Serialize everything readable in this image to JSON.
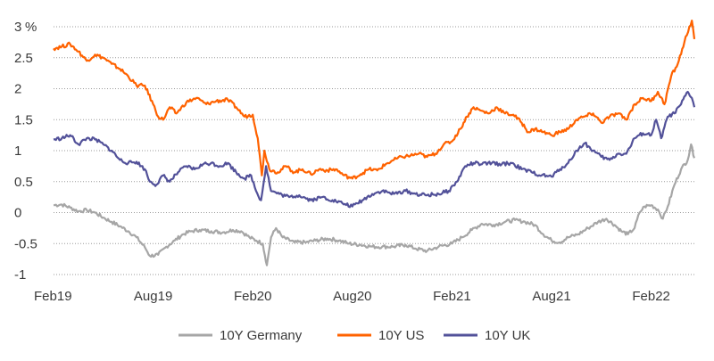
{
  "chart_data": {
    "type": "line",
    "title": "",
    "xlabel": "",
    "ylabel": "",
    "unit_label": "%",
    "ylim": [
      -1,
      3
    ],
    "yticks": [
      {
        "v": 3,
        "label": "3"
      },
      {
        "v": 2.5,
        "label": "2.5"
      },
      {
        "v": 2,
        "label": "2"
      },
      {
        "v": 1.5,
        "label": "1.5"
      },
      {
        "v": 1,
        "label": "1"
      },
      {
        "v": 0.5,
        "label": "0.5"
      },
      {
        "v": 0,
        "label": "0"
      },
      {
        "v": -0.5,
        "label": "-0.5"
      },
      {
        "v": -1,
        "label": "-1"
      }
    ],
    "xlim": [
      0,
      38.6
    ],
    "xticks": [
      {
        "t": 0,
        "label": "Feb19"
      },
      {
        "t": 6,
        "label": "Aug19"
      },
      {
        "t": 12,
        "label": "Feb20"
      },
      {
        "t": 18,
        "label": "Aug20"
      },
      {
        "t": 24,
        "label": "Feb21"
      },
      {
        "t": 30,
        "label": "Aug21"
      },
      {
        "t": 36,
        "label": "Feb22"
      }
    ],
    "grid": "horizontal dotted",
    "legend_position": "bottom",
    "series": [
      {
        "name": "10Y Germany",
        "color": "#a6a6a6",
        "points": [
          [
            0,
            0.12
          ],
          [
            0.5,
            0.13
          ],
          [
            1,
            0.08
          ],
          [
            1.5,
            0.02
          ],
          [
            2,
            0.04
          ],
          [
            2.5,
            0.0
          ],
          [
            3,
            -0.08
          ],
          [
            3.5,
            -0.15
          ],
          [
            4,
            -0.22
          ],
          [
            4.5,
            -0.3
          ],
          [
            5,
            -0.4
          ],
          [
            5.5,
            -0.56
          ],
          [
            5.8,
            -0.7
          ],
          [
            6.3,
            -0.68
          ],
          [
            6.8,
            -0.55
          ],
          [
            7.3,
            -0.45
          ],
          [
            7.8,
            -0.35
          ],
          [
            8.3,
            -0.3
          ],
          [
            8.8,
            -0.28
          ],
          [
            9.5,
            -0.3
          ],
          [
            10.2,
            -0.32
          ],
          [
            10.8,
            -0.28
          ],
          [
            11.3,
            -0.3
          ],
          [
            11.8,
            -0.4
          ],
          [
            12.2,
            -0.45
          ],
          [
            12.6,
            -0.5
          ],
          [
            12.85,
            -0.85
          ],
          [
            13.1,
            -0.4
          ],
          [
            13.4,
            -0.25
          ],
          [
            13.8,
            -0.4
          ],
          [
            14.5,
            -0.48
          ],
          [
            15.2,
            -0.48
          ],
          [
            15.8,
            -0.45
          ],
          [
            16.5,
            -0.42
          ],
          [
            17.2,
            -0.45
          ],
          [
            17.8,
            -0.5
          ],
          [
            18.5,
            -0.52
          ],
          [
            19.2,
            -0.55
          ],
          [
            19.8,
            -0.55
          ],
          [
            20.5,
            -0.55
          ],
          [
            21.2,
            -0.52
          ],
          [
            21.8,
            -0.58
          ],
          [
            22.5,
            -0.62
          ],
          [
            23.2,
            -0.55
          ],
          [
            24,
            -0.5
          ],
          [
            24.6,
            -0.4
          ],
          [
            25.2,
            -0.28
          ],
          [
            25.8,
            -0.18
          ],
          [
            26.5,
            -0.2
          ],
          [
            27.2,
            -0.15
          ],
          [
            27.8,
            -0.12
          ],
          [
            28.4,
            -0.15
          ],
          [
            29,
            -0.2
          ],
          [
            29.5,
            -0.35
          ],
          [
            30,
            -0.45
          ],
          [
            30.5,
            -0.48
          ],
          [
            31,
            -0.4
          ],
          [
            31.6,
            -0.35
          ],
          [
            32.2,
            -0.25
          ],
          [
            32.8,
            -0.15
          ],
          [
            33.3,
            -0.1
          ],
          [
            33.8,
            -0.2
          ],
          [
            34.2,
            -0.3
          ],
          [
            34.6,
            -0.35
          ],
          [
            35,
            -0.25
          ],
          [
            35.3,
            0.0
          ],
          [
            35.6,
            0.1
          ],
          [
            36,
            0.12
          ],
          [
            36.4,
            0.05
          ],
          [
            36.7,
            -0.1
          ],
          [
            37,
            0.1
          ],
          [
            37.4,
            0.45
          ],
          [
            37.8,
            0.7
          ],
          [
            38.2,
            0.85
          ],
          [
            38.4,
            1.1
          ],
          [
            38.6,
            0.88
          ]
        ]
      },
      {
        "name": "10Y US",
        "color": "#ff6200",
        "points": [
          [
            0,
            2.65
          ],
          [
            0.5,
            2.68
          ],
          [
            1,
            2.72
          ],
          [
            1.5,
            2.6
          ],
          [
            2,
            2.45
          ],
          [
            2.5,
            2.55
          ],
          [
            3,
            2.5
          ],
          [
            3.5,
            2.4
          ],
          [
            4,
            2.32
          ],
          [
            4.5,
            2.2
          ],
          [
            5,
            2.05
          ],
          [
            5.5,
            2.05
          ],
          [
            6,
            1.75
          ],
          [
            6.3,
            1.55
          ],
          [
            6.6,
            1.5
          ],
          [
            7,
            1.7
          ],
          [
            7.4,
            1.6
          ],
          [
            8,
            1.78
          ],
          [
            8.6,
            1.85
          ],
          [
            9.2,
            1.75
          ],
          [
            9.8,
            1.8
          ],
          [
            10.5,
            1.82
          ],
          [
            11,
            1.7
          ],
          [
            11.5,
            1.55
          ],
          [
            12,
            1.58
          ],
          [
            12.3,
            1.2
          ],
          [
            12.55,
            0.6
          ],
          [
            12.7,
            1.0
          ],
          [
            13,
            0.7
          ],
          [
            13.5,
            0.65
          ],
          [
            14,
            0.75
          ],
          [
            14.5,
            0.65
          ],
          [
            15,
            0.7
          ],
          [
            15.5,
            0.62
          ],
          [
            16,
            0.7
          ],
          [
            16.5,
            0.68
          ],
          [
            17,
            0.7
          ],
          [
            17.5,
            0.6
          ],
          [
            18,
            0.55
          ],
          [
            18.5,
            0.62
          ],
          [
            19,
            0.7
          ],
          [
            19.5,
            0.68
          ],
          [
            20,
            0.78
          ],
          [
            20.5,
            0.85
          ],
          [
            21,
            0.9
          ],
          [
            21.5,
            0.92
          ],
          [
            22,
            0.95
          ],
          [
            22.5,
            0.9
          ],
          [
            23,
            0.95
          ],
          [
            23.5,
            1.1
          ],
          [
            24,
            1.15
          ],
          [
            24.5,
            1.35
          ],
          [
            24.9,
            1.55
          ],
          [
            25.3,
            1.7
          ],
          [
            25.7,
            1.65
          ],
          [
            26.2,
            1.6
          ],
          [
            26.7,
            1.7
          ],
          [
            27.2,
            1.6
          ],
          [
            27.7,
            1.58
          ],
          [
            28.2,
            1.45
          ],
          [
            28.6,
            1.3
          ],
          [
            29,
            1.35
          ],
          [
            29.5,
            1.3
          ],
          [
            30,
            1.25
          ],
          [
            30.5,
            1.3
          ],
          [
            31,
            1.35
          ],
          [
            31.5,
            1.5
          ],
          [
            32,
            1.55
          ],
          [
            32.5,
            1.6
          ],
          [
            33,
            1.45
          ],
          [
            33.5,
            1.55
          ],
          [
            34,
            1.6
          ],
          [
            34.5,
            1.5
          ],
          [
            35,
            1.75
          ],
          [
            35.5,
            1.85
          ],
          [
            36,
            1.8
          ],
          [
            36.4,
            1.95
          ],
          [
            36.8,
            1.75
          ],
          [
            37.2,
            2.2
          ],
          [
            37.6,
            2.4
          ],
          [
            38,
            2.75
          ],
          [
            38.3,
            3.0
          ],
          [
            38.45,
            3.1
          ],
          [
            38.6,
            2.8
          ]
        ]
      },
      {
        "name": "10Y UK",
        "color": "#525199",
        "points": [
          [
            0,
            1.18
          ],
          [
            0.5,
            1.2
          ],
          [
            1,
            1.25
          ],
          [
            1.5,
            1.1
          ],
          [
            2,
            1.2
          ],
          [
            2.5,
            1.18
          ],
          [
            3,
            1.1
          ],
          [
            3.5,
            1.0
          ],
          [
            4,
            0.85
          ],
          [
            4.5,
            0.8
          ],
          [
            5,
            0.82
          ],
          [
            5.5,
            0.7
          ],
          [
            5.8,
            0.5
          ],
          [
            6.2,
            0.45
          ],
          [
            6.6,
            0.6
          ],
          [
            7,
            0.5
          ],
          [
            7.5,
            0.65
          ],
          [
            8,
            0.75
          ],
          [
            8.5,
            0.7
          ],
          [
            9,
            0.78
          ],
          [
            9.5,
            0.8
          ],
          [
            10,
            0.75
          ],
          [
            10.5,
            0.8
          ],
          [
            11,
            0.65
          ],
          [
            11.5,
            0.55
          ],
          [
            11.9,
            0.6
          ],
          [
            12.2,
            0.35
          ],
          [
            12.5,
            0.2
          ],
          [
            12.8,
            0.75
          ],
          [
            13.1,
            0.35
          ],
          [
            13.6,
            0.3
          ],
          [
            14.2,
            0.25
          ],
          [
            14.8,
            0.28
          ],
          [
            15.5,
            0.2
          ],
          [
            16.2,
            0.25
          ],
          [
            16.8,
            0.2
          ],
          [
            17.4,
            0.15
          ],
          [
            18,
            0.1
          ],
          [
            18.6,
            0.2
          ],
          [
            19.2,
            0.3
          ],
          [
            19.8,
            0.35
          ],
          [
            20.5,
            0.3
          ],
          [
            21.2,
            0.35
          ],
          [
            21.8,
            0.3
          ],
          [
            22.5,
            0.28
          ],
          [
            23.2,
            0.3
          ],
          [
            23.8,
            0.35
          ],
          [
            24.3,
            0.5
          ],
          [
            24.8,
            0.75
          ],
          [
            25.3,
            0.8
          ],
          [
            25.8,
            0.78
          ],
          [
            26.4,
            0.8
          ],
          [
            27,
            0.78
          ],
          [
            27.6,
            0.8
          ],
          [
            28.2,
            0.7
          ],
          [
            28.8,
            0.65
          ],
          [
            29.4,
            0.6
          ],
          [
            30,
            0.58
          ],
          [
            30.5,
            0.7
          ],
          [
            31,
            0.8
          ],
          [
            31.5,
            1.0
          ],
          [
            32,
            1.12
          ],
          [
            32.5,
            1.0
          ],
          [
            33,
            0.9
          ],
          [
            33.5,
            0.85
          ],
          [
            34,
            0.95
          ],
          [
            34.5,
            0.95
          ],
          [
            35,
            1.2
          ],
          [
            35.5,
            1.28
          ],
          [
            36,
            1.25
          ],
          [
            36.3,
            1.5
          ],
          [
            36.6,
            1.2
          ],
          [
            37,
            1.55
          ],
          [
            37.4,
            1.6
          ],
          [
            37.8,
            1.75
          ],
          [
            38.2,
            1.95
          ],
          [
            38.45,
            1.85
          ],
          [
            38.6,
            1.7
          ]
        ]
      }
    ]
  }
}
